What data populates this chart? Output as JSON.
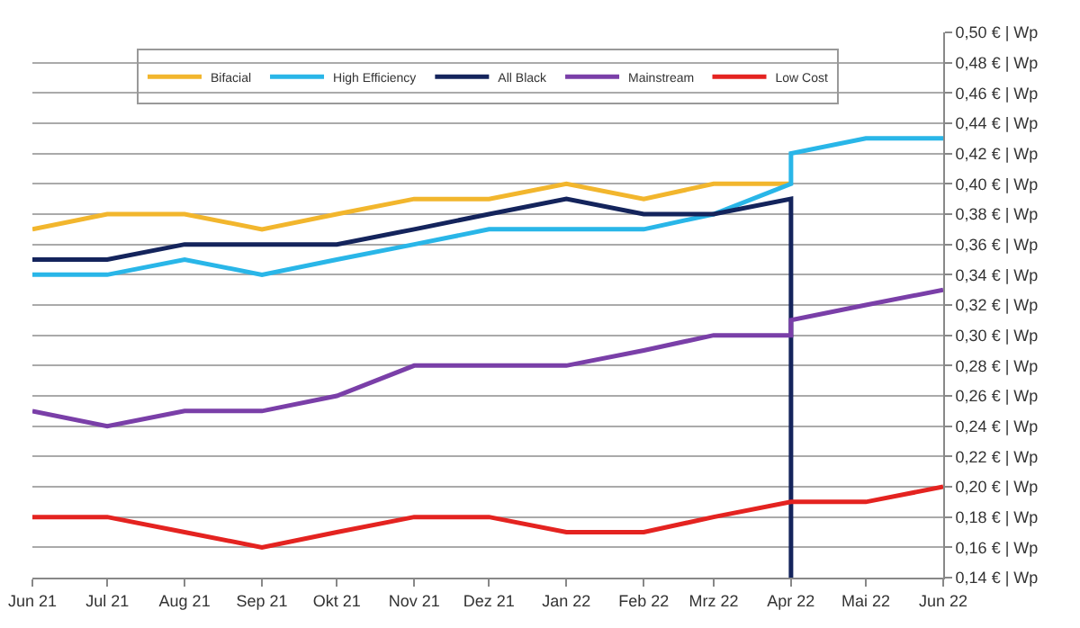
{
  "chart_data": {
    "type": "line",
    "xlim": [
      "2021-06",
      "2022-06"
    ],
    "xticks": [
      {
        "value": "2021-06",
        "label": "Jun 21"
      },
      {
        "value": "2021-07",
        "label": "Jul 21"
      },
      {
        "value": "2021-08",
        "label": "Aug 21"
      },
      {
        "value": "2021-09",
        "label": "Sep 21"
      },
      {
        "value": "2021-10",
        "label": "Okt 21"
      },
      {
        "value": "2021-11",
        "label": "Nov 21"
      },
      {
        "value": "2021-12",
        "label": "Dez 21"
      },
      {
        "value": "2022-01",
        "label": "Jan 22"
      },
      {
        "value": "2022-02",
        "label": "Feb 22"
      },
      {
        "value": "2022-03",
        "label": "Mrz 22"
      },
      {
        "value": "2022-04",
        "label": "Apr 22"
      },
      {
        "value": "2022-05",
        "label": "Mai 22"
      },
      {
        "value": "2022-06",
        "label": "Jun 22"
      }
    ],
    "ylim": [
      0.14,
      0.5
    ],
    "yticks": [
      {
        "value": 0.14,
        "label": "0,14 € | Wp"
      },
      {
        "value": 0.16,
        "label": "0,16 € | Wp"
      },
      {
        "value": 0.18,
        "label": "0,18 € | Wp"
      },
      {
        "value": 0.2,
        "label": "0,20 € | Wp"
      },
      {
        "value": 0.22,
        "label": "0,22 € | Wp"
      },
      {
        "value": 0.24,
        "label": "0,24 € | Wp"
      },
      {
        "value": 0.26,
        "label": "0,26 € | Wp"
      },
      {
        "value": 0.28,
        "label": "0,28 € | Wp"
      },
      {
        "value": 0.3,
        "label": "0,30 € | Wp"
      },
      {
        "value": 0.32,
        "label": "0,32 € | Wp"
      },
      {
        "value": 0.34,
        "label": "0,34 € | Wp"
      },
      {
        "value": 0.36,
        "label": "0,36 € | Wp"
      },
      {
        "value": 0.38,
        "label": "0,38 € | Wp"
      },
      {
        "value": 0.4,
        "label": "0,40 € | Wp"
      },
      {
        "value": 0.42,
        "label": "0,42 € | Wp"
      },
      {
        "value": 0.44,
        "label": "0,44 € | Wp"
      },
      {
        "value": 0.46,
        "label": "0,46 € | Wp"
      },
      {
        "value": 0.48,
        "label": "0,48 € | Wp"
      },
      {
        "value": 0.5,
        "label": "0,50 € | Wp"
      }
    ],
    "grid": "y",
    "legend": "top",
    "marker": "none",
    "line_style": "solid",
    "series": [
      {
        "name": "Bifacial",
        "color": "#f2b62d",
        "x": [
          "2021-06",
          "2021-07",
          "2021-08",
          "2021-09",
          "2021-10",
          "2021-11",
          "2021-12",
          "2022-01",
          "2022-02",
          "2022-03",
          "2022-04"
        ],
        "values": [
          0.37,
          0.38,
          0.38,
          0.37,
          0.38,
          0.39,
          0.39,
          0.4,
          0.39,
          0.4,
          0.4
        ]
      },
      {
        "name": "High Efficiency",
        "color": "#29b6e8",
        "x": [
          "2021-06",
          "2021-07",
          "2021-08",
          "2021-09",
          "2021-10",
          "2021-11",
          "2021-12",
          "2022-01",
          "2022-02",
          "2022-03",
          "2022-04",
          "2022-04",
          "2022-05",
          "2022-06"
        ],
        "values": [
          0.34,
          0.34,
          0.35,
          0.34,
          0.35,
          0.36,
          0.37,
          0.37,
          0.37,
          0.38,
          0.4,
          0.42,
          0.43,
          0.43
        ]
      },
      {
        "name": "All Black",
        "color": "#14245c",
        "x": [
          "2021-06",
          "2021-07",
          "2021-08",
          "2021-09",
          "2021-10",
          "2021-11",
          "2021-12",
          "2022-01",
          "2022-02",
          "2022-03",
          "2022-04",
          "2022-04"
        ],
        "values": [
          0.35,
          0.35,
          0.36,
          0.36,
          0.36,
          0.37,
          0.38,
          0.39,
          0.38,
          0.38,
          0.39,
          0.14
        ]
      },
      {
        "name": "Mainstream",
        "color": "#7a3fa8",
        "x": [
          "2021-06",
          "2021-07",
          "2021-08",
          "2021-09",
          "2021-10",
          "2021-11",
          "2021-12",
          "2022-01",
          "2022-02",
          "2022-03",
          "2022-04",
          "2022-04",
          "2022-05",
          "2022-06"
        ],
        "values": [
          0.25,
          0.24,
          0.25,
          0.25,
          0.26,
          0.28,
          0.28,
          0.28,
          0.29,
          0.3,
          0.3,
          0.31,
          0.32,
          0.33
        ]
      },
      {
        "name": "Low Cost",
        "color": "#e42320",
        "x": [
          "2021-06",
          "2021-07",
          "2021-08",
          "2021-09",
          "2021-10",
          "2021-11",
          "2021-12",
          "2022-01",
          "2022-02",
          "2022-03",
          "2022-04",
          "2022-05",
          "2022-06"
        ],
        "values": [
          0.18,
          0.18,
          0.17,
          0.16,
          0.17,
          0.18,
          0.18,
          0.17,
          0.17,
          0.18,
          0.19,
          0.19,
          0.2
        ]
      }
    ]
  }
}
